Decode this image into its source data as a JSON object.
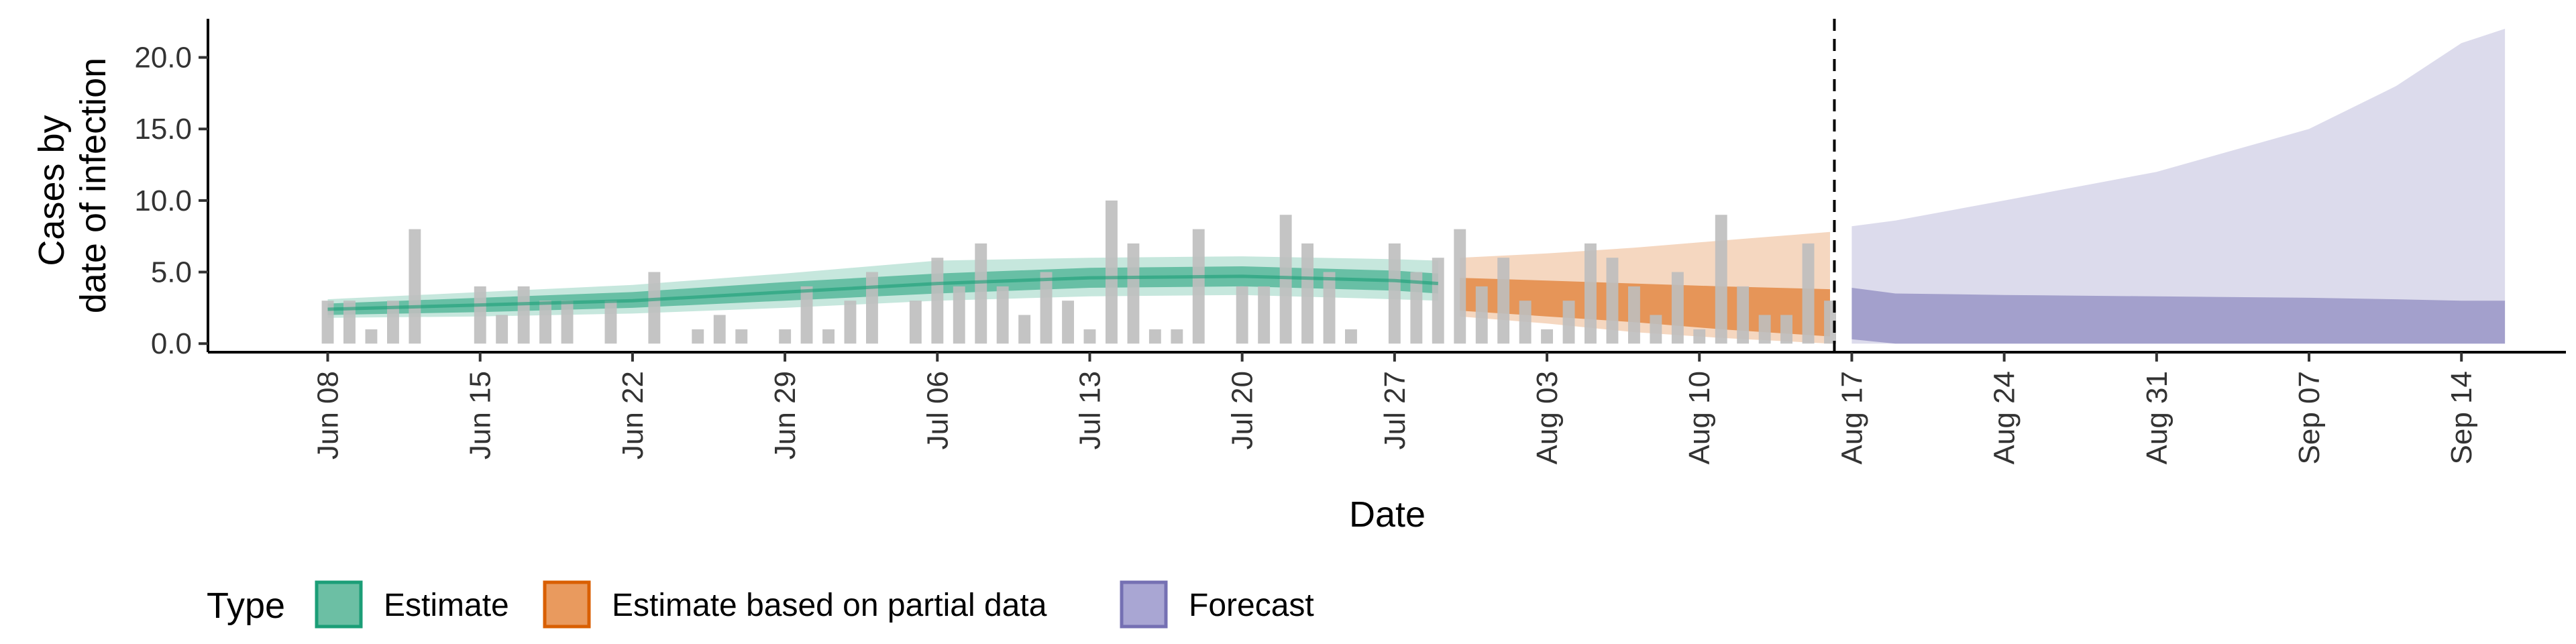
{
  "chart_data": {
    "type": "area",
    "xlabel": "Date",
    "ylabel_lines": [
      "Cases by",
      "date of infection"
    ],
    "ylim": [
      -0.6,
      22.7
    ],
    "y_ticks": [
      "0.0",
      "5.0",
      "10.0",
      "15.0",
      "20.0"
    ],
    "y_tick_values": [
      0,
      5,
      10,
      15,
      20
    ],
    "x_tick_labels": [
      "Jun 08",
      "Jun 15",
      "Jun 22",
      "Jun 29",
      "Jul 06",
      "Jul 13",
      "Jul 20",
      "Jul 27",
      "Aug 03",
      "Aug 10",
      "Aug 17",
      "Aug 24",
      "Aug 31",
      "Sep 07",
      "Sep 14"
    ],
    "x_tick_days": [
      0,
      7,
      14,
      21,
      28,
      35,
      42,
      49,
      56,
      63,
      70,
      77,
      84,
      91,
      98
    ],
    "x_range_days": [
      -5.5,
      102.8
    ],
    "vline_day": 69.2,
    "observed_cases": {
      "start_day": 0,
      "values": [
        3,
        3,
        1,
        3,
        8,
        0,
        0,
        4,
        2,
        4,
        3,
        3,
        0,
        3,
        0,
        5,
        0,
        1,
        2,
        1,
        0,
        1,
        4,
        1,
        3,
        5,
        0,
        3,
        6,
        4,
        7,
        4,
        2,
        5,
        3,
        1,
        10,
        7,
        1,
        1,
        8,
        0,
        4,
        4,
        9,
        7,
        5,
        1,
        0,
        7,
        5,
        6,
        8,
        4,
        6,
        3,
        1,
        3,
        7,
        6,
        4,
        2,
        5,
        1,
        9,
        4,
        2,
        2,
        7,
        3
      ]
    },
    "series": [
      {
        "name": "Estimate",
        "color": "#1B9E77",
        "x": [
          0,
          7,
          14,
          21,
          28,
          35,
          42,
          49,
          51
        ],
        "median": [
          2.4,
          2.7,
          3.0,
          3.6,
          4.2,
          4.6,
          4.7,
          4.4,
          4.2
        ],
        "inner_lower": [
          2.0,
          2.2,
          2.5,
          3.0,
          3.5,
          3.9,
          4.0,
          3.7,
          3.5
        ],
        "inner_upper": [
          2.8,
          3.2,
          3.6,
          4.3,
          4.9,
          5.3,
          5.4,
          5.1,
          4.9
        ],
        "outer_lower": [
          1.8,
          1.9,
          2.1,
          2.5,
          3.0,
          3.3,
          3.4,
          3.1,
          3.0
        ],
        "outer_upper": [
          3.1,
          3.6,
          4.1,
          4.9,
          5.8,
          6.0,
          6.1,
          5.9,
          5.8
        ]
      },
      {
        "name": "Estimate based on partial data",
        "color": "#D95F02",
        "x": [
          52,
          56,
          60,
          64,
          69
        ],
        "inner_lower": [
          2.3,
          1.9,
          1.5,
          1.0,
          0.5
        ],
        "inner_upper": [
          4.6,
          4.4,
          4.2,
          4.0,
          3.8
        ],
        "outer_lower": [
          1.9,
          1.4,
          0.8,
          0.4,
          0.0
        ],
        "outer_upper": [
          6.0,
          6.3,
          6.7,
          7.2,
          7.8
        ]
      },
      {
        "name": "Forecast",
        "color": "#7570B3",
        "x": [
          70,
          72,
          77,
          84,
          91,
          95,
          98,
          100
        ],
        "inner_lower": [
          0.3,
          0.0,
          0.0,
          0.0,
          0.0,
          0.0,
          0.0,
          0.0
        ],
        "inner_upper": [
          3.9,
          3.5,
          3.4,
          3.3,
          3.2,
          3.1,
          3.0,
          3.0
        ],
        "outer_lower": [
          0.0,
          0.0,
          0.0,
          0.0,
          0.0,
          0.0,
          0.0,
          0.0
        ],
        "outer_upper": [
          8.2,
          8.6,
          10.0,
          12.0,
          15.0,
          18.0,
          21.0,
          22.0
        ]
      }
    ],
    "legend": {
      "title": "Type",
      "position": "bottom",
      "items": [
        {
          "label": "Estimate",
          "fill": "#6CBFA4",
          "border": "#1B9E77"
        },
        {
          "label": "Estimate based on partial data",
          "fill": "#E99A5E",
          "border": "#D95F02"
        },
        {
          "label": "Forecast",
          "fill": "#A9A6D3",
          "border": "#7570B3"
        }
      ]
    },
    "colors": {
      "bars": "#BEBEBE",
      "vline": "#000000",
      "axis": "#000000"
    }
  }
}
